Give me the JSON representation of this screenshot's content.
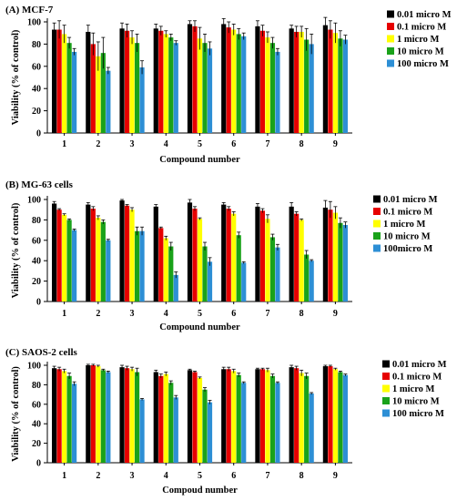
{
  "colors": {
    "series": [
      "#000000",
      "#e60000",
      "#ffff00",
      "#1aa21a",
      "#2d8fd5"
    ],
    "axis": "#000000"
  },
  "chart_data": [
    {
      "type": "bar",
      "title": "(A) MCF-7",
      "xlabel": "Compound number",
      "ylabel": "Viability (% of control)",
      "ylim": [
        0,
        100
      ],
      "yticks": [
        "0",
        "20",
        "40",
        "60",
        "80",
        "100"
      ],
      "grid": false,
      "legend_position": "top-right",
      "categories": [
        "1",
        "2",
        "3",
        "4",
        "5",
        "6",
        "7",
        "8",
        "9"
      ],
      "series": [
        {
          "name": "0.01 micro M",
          "values": [
            93,
            91,
            94,
            94,
            98,
            98,
            96,
            94,
            97
          ],
          "errors": [
            6,
            6,
            5,
            4,
            3,
            5,
            5,
            3,
            7
          ]
        },
        {
          "name": "0.1 micro M",
          "values": [
            93,
            80,
            92,
            92,
            96,
            95,
            92,
            91,
            93
          ],
          "errors": [
            8,
            10,
            6,
            4,
            5,
            5,
            5,
            5,
            8
          ]
        },
        {
          "name": "1 micro M",
          "values": [
            89,
            69,
            86,
            89,
            85,
            93,
            86,
            91,
            90
          ],
          "errors": [
            8,
            13,
            6,
            3,
            10,
            5,
            5,
            5,
            9
          ]
        },
        {
          "name": "10 micro M",
          "values": [
            81,
            72,
            81,
            86,
            81,
            89,
            81,
            84,
            85
          ],
          "errors": [
            5,
            14,
            8,
            3,
            8,
            5,
            5,
            10,
            7
          ]
        },
        {
          "name": "100 micro M",
          "values": [
            73,
            56,
            59,
            81,
            76,
            87,
            73,
            80,
            84
          ],
          "errors": [
            3,
            3,
            6,
            2,
            6,
            3,
            3,
            9,
            4
          ]
        }
      ]
    },
    {
      "type": "bar",
      "title": "(B) MG-63 cells",
      "xlabel": "Compound number",
      "ylabel": "Viability (% of control)",
      "ylim": [
        0,
        100
      ],
      "yticks": [
        "0",
        "20",
        "40",
        "60",
        "80",
        "100"
      ],
      "grid": false,
      "legend_position": "top-right",
      "categories": [
        "1",
        "2",
        "3",
        "4",
        "5",
        "6",
        "7",
        "8",
        "9"
      ],
      "series": [
        {
          "name": "0.01 micro M",
          "values": [
            96,
            95,
            99,
            93,
            97,
            95,
            93,
            93,
            92
          ],
          "errors": [
            2,
            2,
            1,
            2,
            3,
            2,
            3,
            4,
            7
          ]
        },
        {
          "name": "0.1 micro M",
          "values": [
            90,
            91,
            94,
            72,
            91,
            91,
            89,
            86,
            90
          ],
          "errors": [
            1,
            2,
            1,
            1,
            2,
            2,
            2,
            2,
            8
          ]
        },
        {
          "name": "1 micro M",
          "values": [
            85,
            82,
            90,
            62,
            81,
            86,
            81,
            80,
            87
          ],
          "errors": [
            1,
            2,
            2,
            2,
            1,
            2,
            4,
            1,
            6
          ]
        },
        {
          "name": "10 micro M",
          "values": [
            80,
            78,
            69,
            54,
            54,
            65,
            63,
            46,
            77
          ],
          "errors": [
            1,
            2,
            4,
            4,
            4,
            3,
            3,
            4,
            5
          ]
        },
        {
          "name": "100micro M",
          "values": [
            70,
            60,
            69,
            26,
            39,
            38,
            53,
            40,
            75
          ],
          "errors": [
            1,
            1,
            4,
            3,
            4,
            1,
            3,
            1,
            3
          ]
        }
      ]
    },
    {
      "type": "bar",
      "title": "(C) SAOS-2 cells",
      "xlabel": "Compoud number",
      "ylabel": "Viability (% of control)",
      "ylim": [
        0,
        100
      ],
      "yticks": [
        "0",
        "20",
        "40",
        "60",
        "80",
        "100"
      ],
      "grid": false,
      "legend_position": "top-right",
      "categories": [
        "1",
        "2",
        "3",
        "4",
        "5",
        "6",
        "7",
        "8",
        "9"
      ],
      "series": [
        {
          "name": "0.01 micro M",
          "values": [
            97,
            100,
            98,
            93,
            95,
            96,
            96,
            98,
            99
          ],
          "errors": [
            2,
            1,
            2,
            2,
            1,
            2,
            1,
            2,
            1
          ]
        },
        {
          "name": "0.1 micro M",
          "values": [
            96,
            100,
            97,
            89,
            93,
            96,
            96,
            97,
            99
          ],
          "errors": [
            2,
            1,
            2,
            2,
            1,
            2,
            1,
            2,
            1
          ]
        },
        {
          "name": "1 micro M",
          "values": [
            94,
            99,
            96,
            91,
            87,
            94,
            95,
            92,
            96
          ],
          "errors": [
            2,
            1,
            2,
            2,
            1,
            2,
            2,
            3,
            1
          ]
        },
        {
          "name": "10 micro M",
          "values": [
            89,
            95,
            93,
            82,
            75,
            90,
            89,
            89,
            93
          ],
          "errors": [
            3,
            1,
            4,
            2,
            2,
            2,
            2,
            3,
            1
          ]
        },
        {
          "name": "100 micro M",
          "values": [
            81,
            93,
            65,
            67,
            62,
            82,
            82,
            71,
            90
          ],
          "errors": [
            2,
            1,
            1,
            2,
            2,
            1,
            1,
            1,
            1
          ]
        }
      ]
    }
  ]
}
